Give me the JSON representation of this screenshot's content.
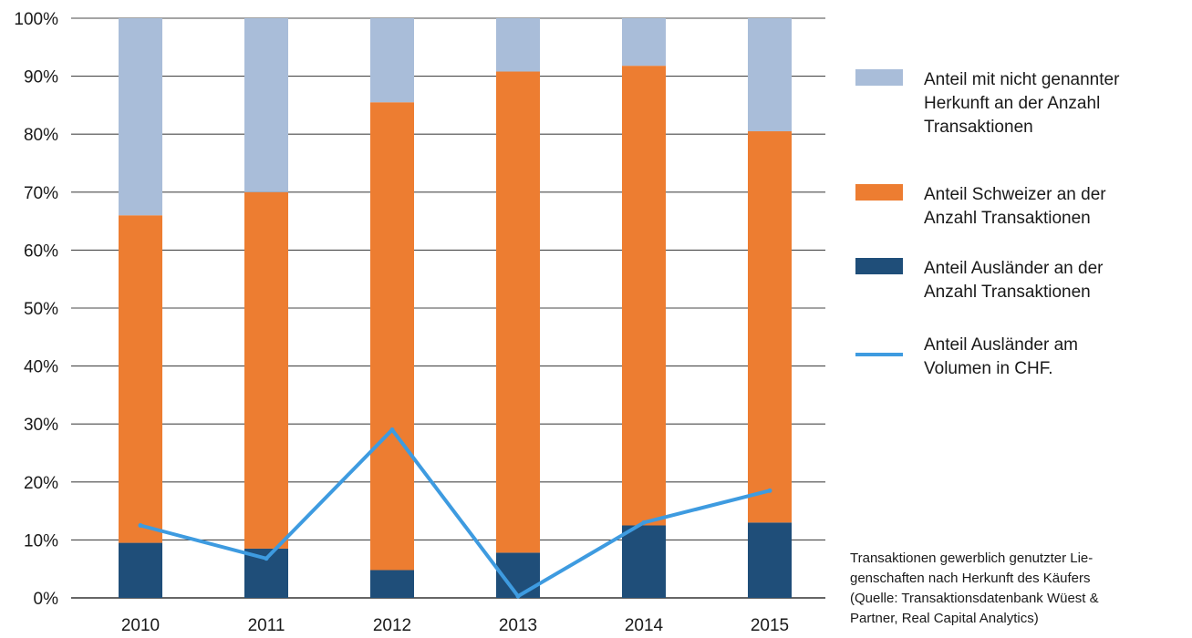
{
  "chart_data": {
    "type": "bar",
    "stacked": true,
    "categories": [
      "2010",
      "2011",
      "2012",
      "2013",
      "2014",
      "2015"
    ],
    "series": [
      {
        "name": "Anteil Ausländer an der Anzahl Transaktionen",
        "kind": "bar",
        "color": "#1f4e79",
        "values": [
          9.5,
          8.5,
          4.8,
          7.8,
          12.5,
          13.0
        ]
      },
      {
        "name": "Anteil Schweizer an der Anzahl Transaktionen",
        "kind": "bar",
        "color": "#ed7d31",
        "values": [
          56.5,
          61.5,
          80.7,
          83.0,
          79.3,
          67.5
        ]
      },
      {
        "name": "Anteil mit nicht genannter Herkunft an der Anzahl Transaktionen",
        "kind": "bar",
        "color": "#a9bdd9",
        "values": [
          34.0,
          30.0,
          14.5,
          9.2,
          8.2,
          19.5
        ]
      },
      {
        "name": "Anteil Ausländer am Volumen in CHF.",
        "kind": "line",
        "color": "#3e9be0",
        "values": [
          12.5,
          6.8,
          29.0,
          0.3,
          13.0,
          18.5
        ]
      }
    ],
    "ylim": [
      0,
      100
    ],
    "yticks": [
      "0%",
      "10%",
      "20%",
      "30%",
      "40%",
      "50%",
      "60%",
      "70%",
      "80%",
      "90%",
      "100%"
    ],
    "grid": true,
    "legend_position": "right",
    "legend": [
      {
        "lines": [
          "Anteil mit nicht genannter",
          "Herkunft an der Anzahl",
          "Transaktionen"
        ],
        "color": "#a9bdd9",
        "shape": "box"
      },
      {
        "lines": [
          "Anteil  Schweizer an der",
          "Anzahl Transaktionen"
        ],
        "color": "#ed7d31",
        "shape": "box"
      },
      {
        "lines": [
          "Anteil Ausländer an der",
          "Anzahl Transaktionen"
        ],
        "color": "#1f4e79",
        "shape": "box"
      },
      {
        "lines": [
          "Anteil Ausländer am",
          "Volumen in CHF."
        ],
        "color": "#3e9be0",
        "shape": "line"
      }
    ],
    "note": [
      "Transaktionen gewerblich genutzter Lie-",
      "genschaften nach Herkunft des Käufers",
      "(Quelle: Transaktionsdatenbank Wüest &",
      "Partner, Real Capital Analytics)"
    ]
  }
}
